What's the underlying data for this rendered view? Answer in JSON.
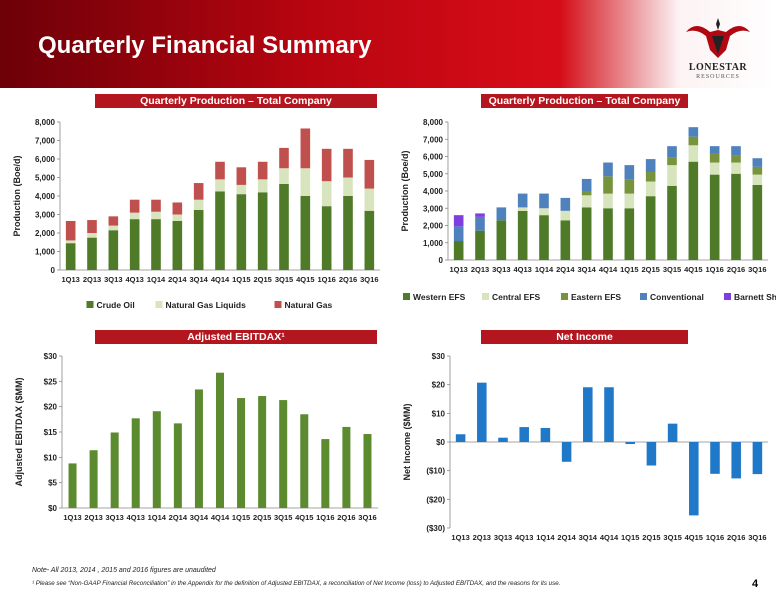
{
  "header": {
    "title": "Quarterly Financial Summary",
    "logo_name": "Lonestar",
    "logo_sub": "Resources",
    "colors": {
      "brand_red": "#c40a14",
      "dark_red": "#6d0008"
    }
  },
  "panels": {
    "p1_title": "Quarterly Production – Total Company",
    "p2_title": "Quarterly Production – Total Company",
    "p3_title": "Adjusted EBITDAX¹",
    "p4_title": "Net Income"
  },
  "footer": {
    "note": "Note- All 2013, 2014 , 2015 and 2016 figures are unaudited",
    "footnote": "¹ Please see “Non-GAAP Financial Reconciliation” in the Appendix for the definition of Adjusted EBITDAX, a reconciliation of Net Income (loss) to Adjusted EBITDAX, and the reasons for its use.",
    "page_number": "4"
  },
  "chart_data": [
    {
      "type": "bar",
      "stacked": true,
      "categories": [
        "1Q13",
        "2Q13",
        "3Q13",
        "4Q13",
        "1Q14",
        "2Q14",
        "3Q14",
        "4Q14",
        "1Q15",
        "2Q15",
        "3Q15",
        "4Q15",
        "1Q16",
        "2Q16",
        "3Q16"
      ],
      "ylabel": "Production (Boe/d)",
      "ylim": [
        0,
        8000
      ],
      "yticks": [
        "0",
        "1,000",
        "2,000",
        "3,000",
        "4,000",
        "5,000",
        "6,000",
        "7,000",
        "8,000"
      ],
      "grid": false,
      "legend": "bottom",
      "series": [
        {
          "name": "Crude Oil",
          "color": "#4f7a28",
          "values": [
            1450,
            1750,
            2150,
            2750,
            2750,
            2650,
            3250,
            4250,
            4100,
            4200,
            4650,
            4000,
            3450,
            4000,
            3200
          ]
        },
        {
          "name": "Natural Gas Liquids",
          "color": "#d7e4bd",
          "values": [
            150,
            250,
            250,
            350,
            400,
            350,
            550,
            650,
            500,
            700,
            850,
            1500,
            1350,
            1000,
            1200
          ]
        },
        {
          "name": "Natural Gas",
          "color": "#c0504d",
          "values": [
            1050,
            700,
            500,
            700,
            650,
            650,
            900,
            950,
            950,
            950,
            1100,
            2150,
            1750,
            1550,
            1550
          ]
        }
      ]
    },
    {
      "type": "bar",
      "stacked": true,
      "categories": [
        "1Q13",
        "2Q13",
        "3Q13",
        "4Q13",
        "1Q14",
        "2Q14",
        "3Q14",
        "4Q14",
        "1Q15",
        "2Q15",
        "3Q15",
        "4Q15",
        "1Q16",
        "2Q16",
        "3Q16"
      ],
      "ylabel": "Production (Boe/d)",
      "ylim": [
        0,
        8000
      ],
      "yticks": [
        "0",
        "1,000",
        "2,000",
        "3,000",
        "4,000",
        "5,000",
        "6,000",
        "7,000",
        "8,000"
      ],
      "grid": false,
      "legend": "bottom",
      "series": [
        {
          "name": "Western EFS",
          "color": "#4f7a28",
          "values": [
            1100,
            1700,
            2300,
            2850,
            2600,
            2300,
            3050,
            3000,
            3000,
            3700,
            4300,
            5700,
            4950,
            5000,
            4350
          ]
        },
        {
          "name": "Central EFS",
          "color": "#d7e4bd",
          "values": [
            0,
            0,
            0,
            200,
            400,
            550,
            700,
            850,
            850,
            850,
            1200,
            950,
            700,
            650,
            600
          ]
        },
        {
          "name": "Eastern EFS",
          "color": "#77933c",
          "values": [
            0,
            0,
            0,
            0,
            0,
            0,
            250,
            1000,
            800,
            550,
            450,
            500,
            500,
            400,
            450
          ]
        },
        {
          "name": "Conventional",
          "color": "#4f81bd",
          "values": [
            850,
            800,
            750,
            800,
            850,
            750,
            700,
            800,
            850,
            750,
            650,
            550,
            450,
            550,
            500
          ]
        },
        {
          "name": "Barnett Shale",
          "color": "#7f3fe0",
          "values": [
            650,
            200,
            0,
            0,
            0,
            0,
            0,
            0,
            0,
            0,
            0,
            0,
            0,
            0,
            0
          ]
        }
      ]
    },
    {
      "type": "bar",
      "categories": [
        "1Q13",
        "2Q13",
        "3Q13",
        "4Q13",
        "1Q14",
        "2Q14",
        "3Q14",
        "4Q14",
        "1Q15",
        "2Q15",
        "3Q15",
        "4Q15",
        "1Q16",
        "2Q16",
        "3Q16"
      ],
      "ylabel": "Adjusted EBITDAX ($MM)",
      "ylim": [
        0,
        30
      ],
      "yticks": [
        "$0",
        "$5",
        "$10",
        "$15",
        "$20",
        "$25",
        "$30"
      ],
      "grid": false,
      "series": [
        {
          "color": "#5b8a2f",
          "values": [
            8.8,
            11.4,
            14.9,
            17.7,
            19.1,
            16.7,
            23.4,
            26.7,
            21.7,
            22.1,
            21.3,
            18.5,
            13.6,
            16.0,
            14.6
          ]
        }
      ]
    },
    {
      "type": "bar",
      "categories": [
        "1Q13",
        "2Q13",
        "3Q13",
        "4Q13",
        "1Q14",
        "2Q14",
        "3Q14",
        "4Q14",
        "1Q15",
        "2Q15",
        "3Q15",
        "4Q15",
        "1Q16",
        "2Q16",
        "3Q16"
      ],
      "ylabel": "Net Income ($MM)",
      "ylim": [
        -30,
        30
      ],
      "yticks": [
        "($30)",
        "($20)",
        "($10)",
        "$0",
        "$10",
        "$20",
        "$30"
      ],
      "grid": false,
      "series": [
        {
          "color": "#1f78c8",
          "values": [
            2.7,
            20.7,
            1.5,
            5.2,
            4.9,
            -6.9,
            19.1,
            19.1,
            -0.7,
            -8.2,
            6.4,
            -25.6,
            -11.1,
            -12.7,
            -11.2
          ]
        }
      ]
    }
  ]
}
